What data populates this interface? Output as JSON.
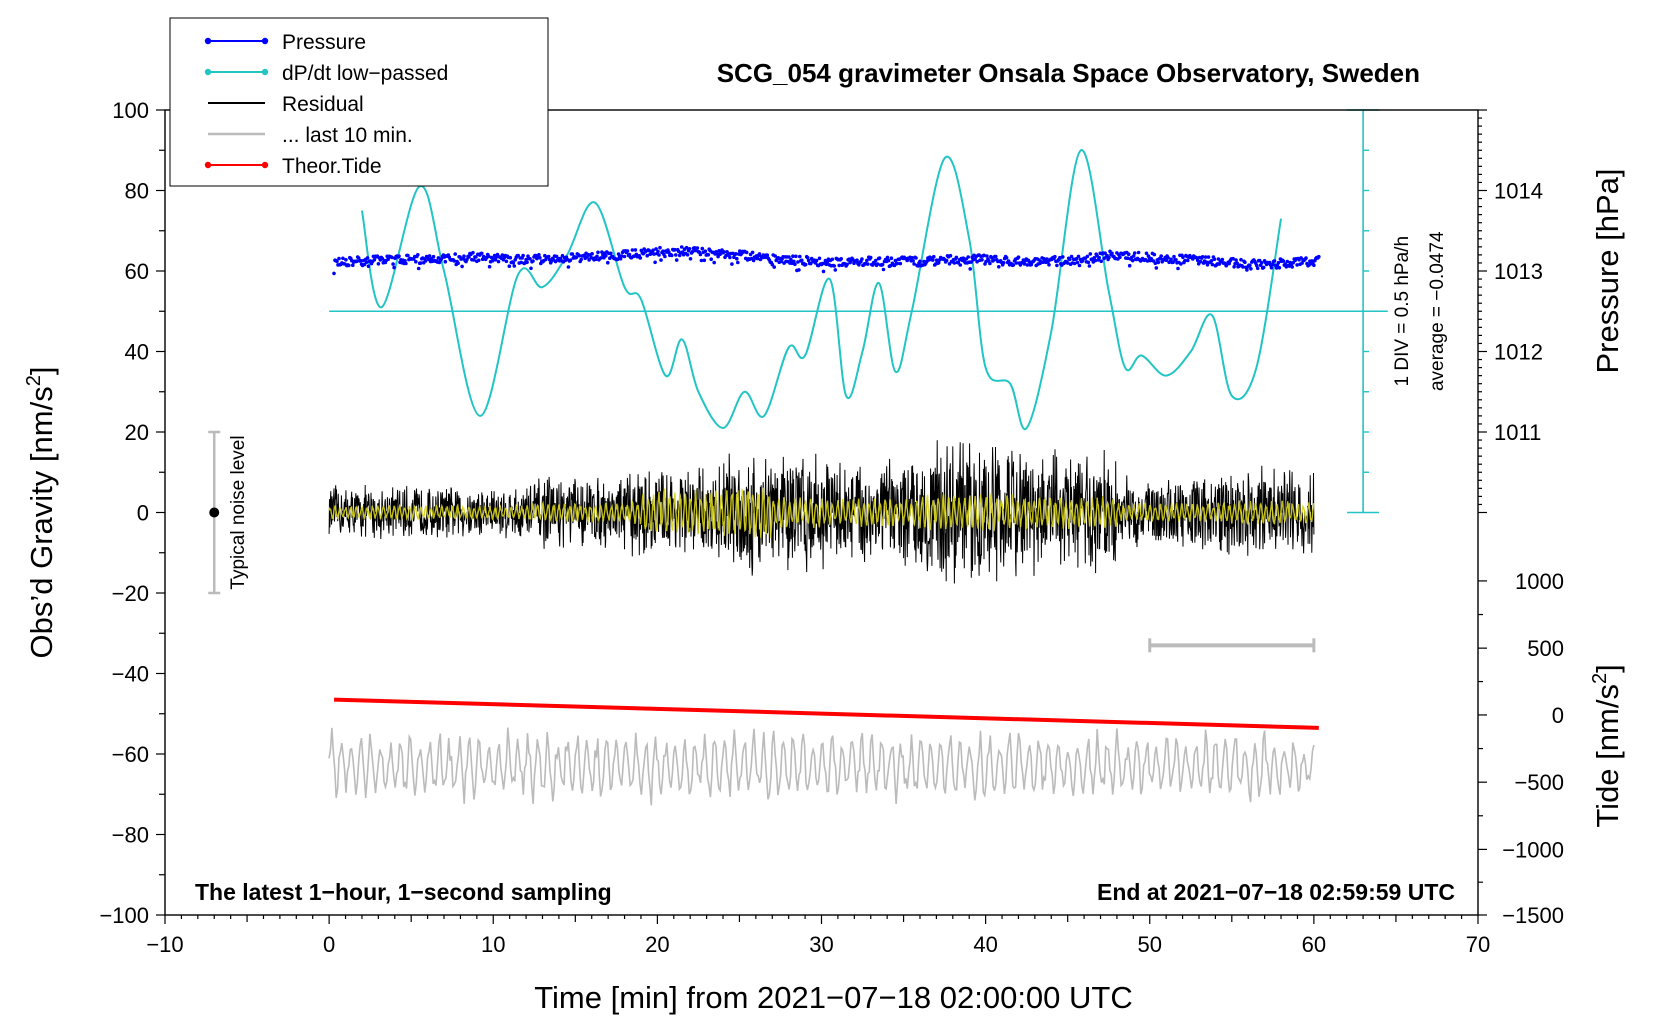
{
  "chart_data": {
    "type": "line",
    "title": "SCG_054 gravimeter Onsala Space Observatory, Sweden",
    "xlabel": "Time [min] from 2021−07−18 02:00:00 UTC",
    "ylabel": "Obs’d Gravity [nm/s²]",
    "ylabel_parts": [
      "Obs’d Gravity [nm/s",
      "2",
      "]"
    ],
    "xlim": [
      -10,
      70
    ],
    "ylim": [
      -100,
      100
    ],
    "x_ticks": [
      -10,
      0,
      10,
      20,
      30,
      40,
      50,
      60,
      70
    ],
    "x_tick_labels": [
      "−10",
      "0",
      "10",
      "20",
      "30",
      "40",
      "50",
      "60",
      "70"
    ],
    "y_ticks": [
      -100,
      -80,
      -60,
      -40,
      -20,
      0,
      20,
      40,
      60,
      80,
      100
    ],
    "y_tick_labels": [
      "−100",
      "−80",
      "−60",
      "−40",
      "−20",
      "0",
      "20",
      "40",
      "60",
      "80",
      "100"
    ],
    "pressure_axis": {
      "label": "Pressure [hPa]",
      "ticks": [
        1011,
        1012,
        1013,
        1014
      ],
      "tick_labels": [
        "1011",
        "1012",
        "1013",
        "1014"
      ],
      "gravity_equivalent": {
        "1011": 20,
        "1012": 40,
        "1013": 60,
        "1014": 80
      }
    },
    "tide_axis": {
      "label": "Tide [nm/s²]",
      "label_parts": [
        "Tide [nm/s",
        "2",
        "]"
      ],
      "ticks": [
        1000,
        500,
        0,
        -500,
        -1000,
        -1500
      ],
      "tick_labels": [
        "1000",
        "500",
        "0",
        "−500",
        "−1000",
        "−1500"
      ],
      "gravity_equivalent": {
        "1000": -17,
        "500": -33.7,
        "0": -50.3,
        "-500": -67,
        "-1000": -83.7,
        "-1500": -100
      }
    },
    "legend": {
      "position": "top-left",
      "entries": [
        {
          "label": "Pressure",
          "color": "#0000ff",
          "marker": true
        },
        {
          "label": "dP/dt low−passed",
          "color": "#22c4c4",
          "marker": true
        },
        {
          "label": "Residual",
          "color": "#000000",
          "marker": false
        },
        {
          "label": "... last 10 min.",
          "color": "#bbbbbb",
          "marker": false
        },
        {
          "label": "Theor.Tide",
          "color": "#ff0000",
          "marker": true
        }
      ]
    },
    "noise_bar": {
      "label": "Typical noise level",
      "x": -7,
      "y_center": 0,
      "y_min": -20,
      "y_max": 20
    },
    "dpdt_scale": {
      "label": "1 DIV = 0.5 hPa/h",
      "average_label": "average = −0.0474",
      "x": 63,
      "y_min": 0,
      "y_max": 100,
      "baseline": 50
    },
    "last10_bar": {
      "x_start": 50,
      "x_end": 60,
      "y": -33
    },
    "annotations": {
      "bottom_left": "The latest 1−hour, 1−second sampling",
      "bottom_right": "End at 2021−07−18 02:59:59 UTC"
    },
    "series": [
      {
        "name": "Pressure",
        "color": "#0000ff",
        "x": [
          0.3,
          3,
          6,
          9,
          12,
          15,
          18,
          21,
          24,
          27,
          30,
          33,
          36,
          39,
          42,
          45,
          48,
          51,
          54,
          57,
          60.3
        ],
        "values": [
          62,
          62.7,
          63,
          63.5,
          62.8,
          63.3,
          64,
          65,
          64.5,
          63,
          62.3,
          62.4,
          62.3,
          63,
          62.4,
          62.5,
          64,
          63,
          62.4,
          61.6,
          62.6
        ]
      },
      {
        "name": "dP/dt low−passed",
        "color": "#22c4c4",
        "x": [
          2,
          3.2,
          5.5,
          7,
          9.2,
          11.5,
          13,
          14.5,
          16.2,
          18,
          19,
          20.5,
          21.5,
          22.5,
          24,
          25.3,
          26.5,
          28,
          29,
          30.5,
          31.5,
          32.5,
          33.5,
          34.5,
          35.5,
          37.5,
          39,
          40,
          41.5,
          42.5,
          44,
          45.8,
          47.5,
          48.5,
          49.5,
          51,
          52.5,
          53.8,
          55,
          56.5,
          58
        ],
        "values": [
          75,
          51,
          81,
          60,
          24,
          59,
          56,
          64,
          77,
          56,
          53,
          34,
          43,
          30,
          21,
          30,
          24,
          41,
          39,
          58,
          29,
          40,
          57,
          35,
          50,
          88,
          68,
          36,
          32,
          21,
          45,
          90,
          55,
          36,
          39,
          34,
          40,
          49,
          29,
          36,
          73
        ]
      },
      {
        "name": "Residual",
        "color": "#000000",
        "x_range": [
          0,
          60
        ],
        "amplitude_profile": [
          6,
          6,
          8,
          10,
          14,
          12,
          16,
          14,
          8,
          10
        ]
      },
      {
        "name": "... last 10 min.",
        "color": "#bbbbbb",
        "x_range": [
          0,
          60
        ],
        "center": -63,
        "amplitude": 7
      },
      {
        "name": "Theor.Tide",
        "color": "#ff0000",
        "x": [
          0.3,
          60.3
        ],
        "values": [
          -46.5,
          -53.5
        ]
      }
    ]
  }
}
